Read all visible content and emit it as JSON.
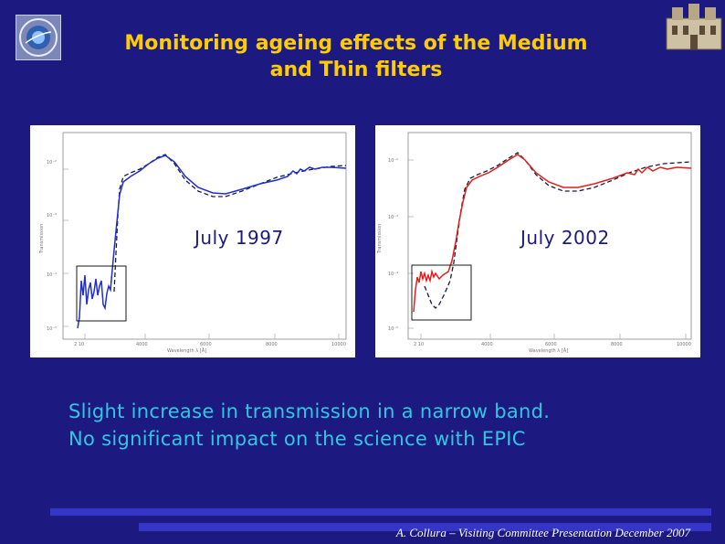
{
  "slide": {
    "title_line1": "Monitoring ageing effects of the Medium",
    "title_line2": "and Thin filters",
    "title_color": "#ffcc00",
    "background_color": "#1c1a80",
    "left_logo_icon": "institute-emblem-icon",
    "right_logo_icon": "observatory-building-icon"
  },
  "panels": [
    {
      "label": "July 1997",
      "series_color": "#1f2fd0",
      "highlight_box": true
    },
    {
      "label": "July 2002",
      "series_color": "#e02020",
      "highlight_box": true
    }
  ],
  "bullets": [
    "Slight increase in transmission in a narrow band.",
    "No significant impact on the science with EPIC"
  ],
  "footer": {
    "text": "A. Collura – Visiting Committee Presentation December 2007",
    "accent_color": "#3535c8"
  }
}
